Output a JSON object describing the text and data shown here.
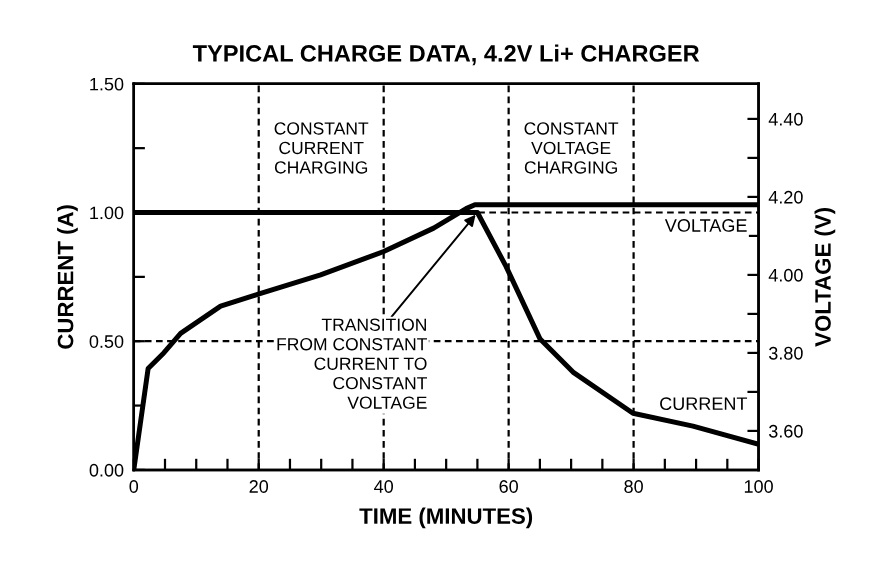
{
  "chart_data": {
    "type": "line",
    "title": "TYPICAL CHARGE DATA, 4.2V Li+ CHARGER",
    "xlabel": "TIME (MINUTES)",
    "ylabel": "CURRENT (A)",
    "y2label": "VOLTAGE (V)",
    "series": [
      {
        "name": "CURRENT",
        "color": "#000000",
        "axis": "y",
        "x": [
          0,
          55,
          59.6,
          65,
          70.3,
          79.9,
          89.5,
          100
        ],
        "values": [
          1.0,
          1.0,
          0.79,
          0.51,
          0.38,
          0.22,
          0.17,
          0.1
        ]
      },
      {
        "name": "VOLTAGE",
        "color": "#000000",
        "axis": "y2",
        "x": [
          0,
          2.3,
          4.8,
          7.5,
          13.9,
          19.8,
          29.9,
          40,
          48,
          53.2,
          54.6,
          100
        ],
        "values": [
          3.5,
          3.76,
          3.8,
          3.85,
          3.92,
          3.95,
          4.0,
          4.06,
          4.12,
          4.17,
          4.18,
          4.18
        ]
      }
    ],
    "xlim": [
      0,
      100
    ],
    "xticks": [
      0,
      {
        "value": 5,
        "label": null
      },
      {
        "value": 10,
        "label": null
      },
      {
        "value": 15,
        "label": null
      },
      20,
      {
        "value": 25,
        "label": null
      },
      {
        "value": 30,
        "label": null
      },
      {
        "value": 35,
        "label": null
      },
      40,
      {
        "value": 45,
        "label": null
      },
      {
        "value": 50,
        "label": null
      },
      {
        "value": 55,
        "label": null
      },
      60,
      {
        "value": 65,
        "label": null
      },
      {
        "value": 70,
        "label": null
      },
      {
        "value": 75,
        "label": null
      },
      80,
      {
        "value": 85,
        "label": null
      },
      {
        "value": 90,
        "label": null
      },
      {
        "value": 95,
        "label": null
      },
      100
    ],
    "ylim": [
      0,
      1.5
    ],
    "yticks": [
      {
        "value": 0,
        "label": "0.00"
      },
      {
        "value": 0.25,
        "label": null
      },
      {
        "value": 0.5,
        "label": "0.50"
      },
      {
        "value": 0.75,
        "label": null
      },
      {
        "value": 1.0,
        "label": "1.00"
      },
      {
        "value": 1.25,
        "label": null
      },
      {
        "value": 1.5,
        "label": "1.50"
      }
    ],
    "y2lim": [
      3.5,
      4.49
    ],
    "y2ticks": [
      {
        "value": 3.6,
        "label": "3.60"
      },
      {
        "value": 3.7,
        "label": null
      },
      {
        "value": 3.8,
        "label": "3.80"
      },
      {
        "value": 3.9,
        "label": null
      },
      {
        "value": 4.0,
        "label": "4.00"
      },
      {
        "value": 4.1,
        "label": null
      },
      {
        "value": 4.2,
        "label": "4.20"
      },
      {
        "value": 4.3,
        "label": null
      },
      {
        "value": 4.4,
        "label": "4.40"
      }
    ],
    "ref_lines": [
      {
        "axis": "x",
        "value": 20,
        "color": "#000000",
        "line_style": "dashed"
      },
      {
        "axis": "x",
        "value": 40,
        "color": "#000000",
        "line_style": "dashed"
      },
      {
        "axis": "x",
        "value": 60,
        "color": "#000000",
        "line_style": "dashed"
      },
      {
        "axis": "x",
        "value": 80,
        "color": "#000000",
        "line_style": "dashed"
      },
      {
        "axis": "y",
        "value": 0.5,
        "color": "#000000",
        "line_style": "dashed"
      },
      {
        "axis": "y",
        "value": 1.0,
        "color": "#000000",
        "line_style": "dashed"
      }
    ],
    "annotations": [
      "CONSTANT\nCURRENT\nCHARGING",
      "CONSTANT\nVOLTAGE\nCHARGING",
      {
        "text": "TRANSITION\nFROM CONSTANT\nCURRENT TO\nCONSTANT\nVOLTAGE",
        "x": 55,
        "y": 1.0
      }
    ],
    "grid": false,
    "legend": false,
    "marker": "none",
    "line_style": "solid"
  }
}
